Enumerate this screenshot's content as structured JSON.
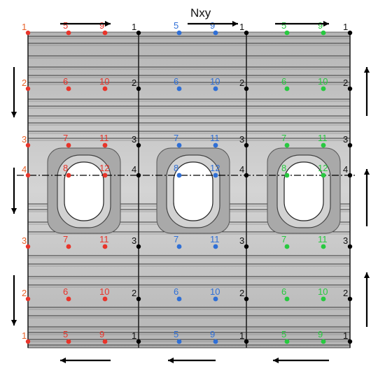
{
  "title": "Nxy",
  "colors": {
    "panel_fill": "#c9c9c9",
    "panel_dark": "#8f8f8f",
    "stringer_line": "#3a3a3a",
    "cutout_pad": "#a9a9a9",
    "cutout_ring": "#d2d2d2",
    "arrow": "#000000",
    "axis": "#000000",
    "black_nodes": "#000000",
    "left_series": "#e8342a",
    "middle_series": "#2f6fd6",
    "right_series": "#27c93f"
  },
  "rows": [
    {
      "edge_label": "1",
      "left_labels": [
        "5",
        "9"
      ]
    },
    {
      "edge_label": "2",
      "left_labels": [
        "6",
        "10"
      ]
    },
    {
      "edge_label": "3",
      "left_labels": [
        "7",
        "11"
      ]
    },
    {
      "edge_label": "4",
      "left_labels": [
        "8",
        "12"
      ]
    },
    {
      "edge_label": "3",
      "left_labels": [
        "7",
        "11"
      ]
    },
    {
      "edge_label": "2",
      "left_labels": [
        "6",
        "10"
      ]
    },
    {
      "edge_label": "1",
      "left_labels": [
        "5",
        "9"
      ]
    }
  ],
  "panels": [
    {
      "name": "left",
      "series_color": "left_series"
    },
    {
      "name": "middle",
      "series_color": "middle_series"
    },
    {
      "name": "right",
      "series_color": "right_series"
    }
  ],
  "arrows": {
    "top": [
      "right",
      "right",
      "right"
    ],
    "bottom": [
      "left",
      "left",
      "left"
    ],
    "left": [
      "down",
      "down",
      "down"
    ],
    "right": [
      "up",
      "up",
      "up"
    ]
  }
}
